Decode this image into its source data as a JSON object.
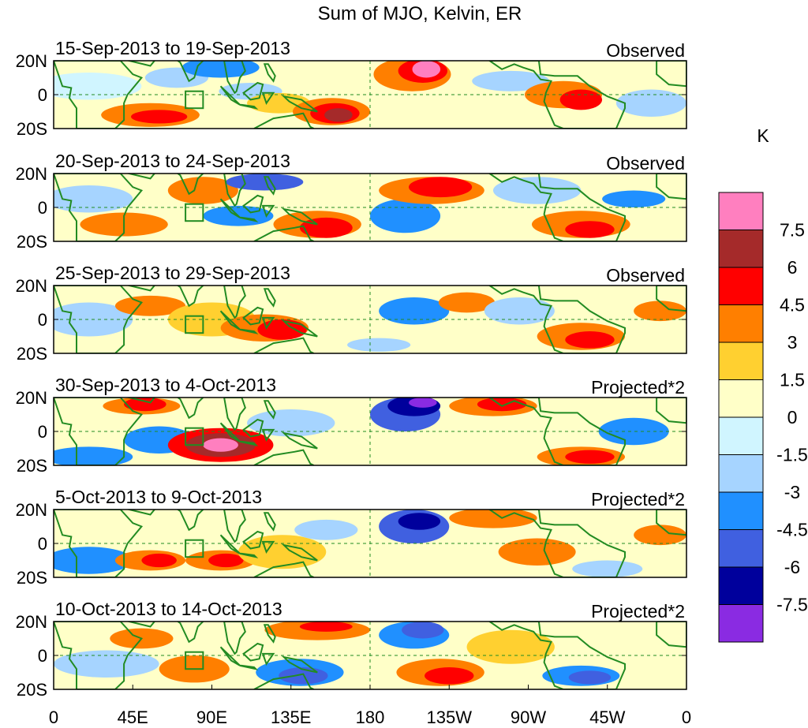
{
  "title": "Sum of MJO, Kelvin, ER",
  "units_label": "K",
  "lat_ticks": [
    "20N",
    "0",
    "20S"
  ],
  "lon_ticks": [
    "0",
    "45E",
    "90E",
    "135E",
    "180",
    "135W",
    "90W",
    "45W",
    "0"
  ],
  "panels": [
    {
      "dates": "15-Sep-2013 to 19-Sep-2013",
      "kind": "Observed"
    },
    {
      "dates": "20-Sep-2013 to 24-Sep-2013",
      "kind": "Observed"
    },
    {
      "dates": "25-Sep-2013 to 29-Sep-2013",
      "kind": "Observed"
    },
    {
      "dates": "30-Sep-2013 to 4-Oct-2013",
      "kind": "Projected*2"
    },
    {
      "dates": "5-Oct-2013 to 9-Oct-2013",
      "kind": "Projected*2"
    },
    {
      "dates": "10-Oct-2013 to 14-Oct-2013",
      "kind": "Projected*2"
    }
  ],
  "colorbar": {
    "labels": [
      "7.5",
      "6",
      "4.5",
      "3",
      "1.5",
      "0",
      "-1.5",
      "-3",
      "-4.5",
      "-6",
      "-7.5"
    ],
    "colors": [
      "#ff7fbf",
      "#a52a2a",
      "#ff0000",
      "#ff7f00",
      "#ffd030",
      "#ffffc8",
      "#d0f5ff",
      "#a6d4ff",
      "#2090ff",
      "#4060e0",
      "#00009c",
      "#8a2be2"
    ]
  },
  "colors": {
    "coast": "#228b22",
    "frame": "#000000"
  }
}
